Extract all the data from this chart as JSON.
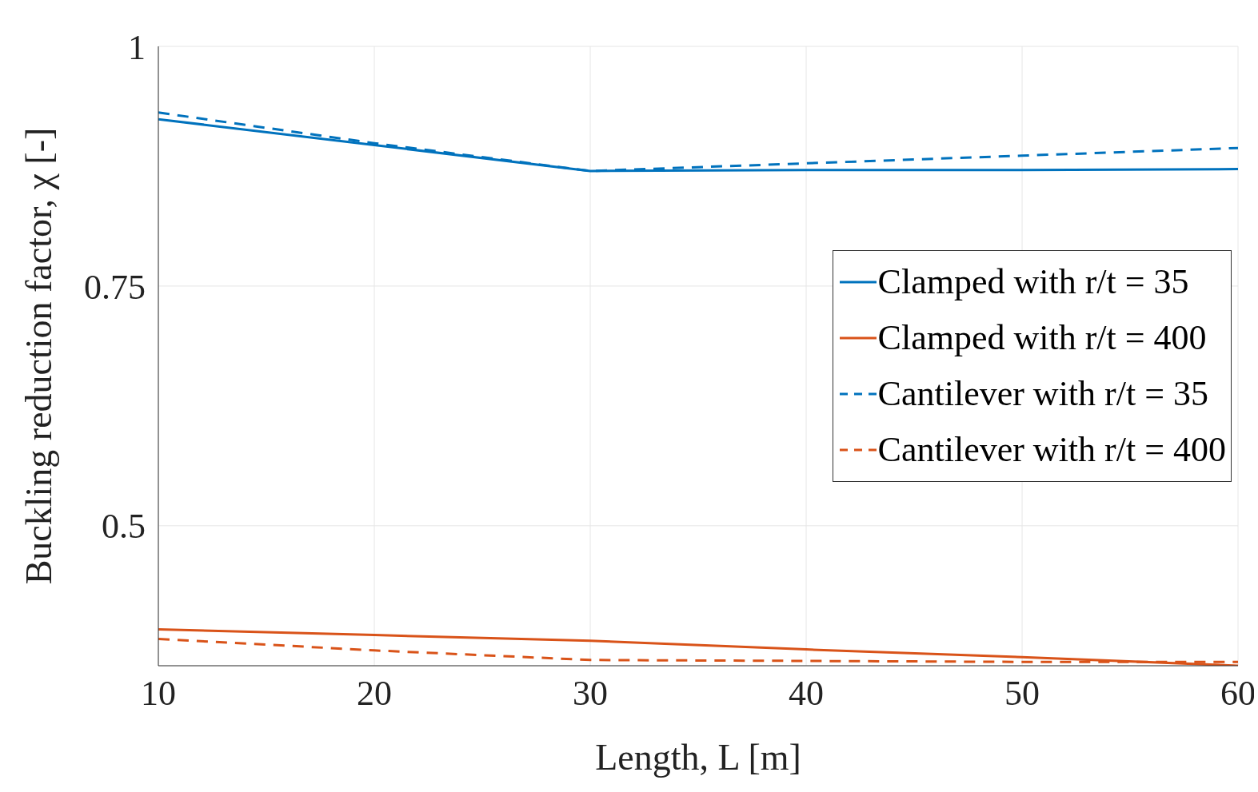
{
  "chart_data": {
    "type": "line",
    "xlabel": "Length, L [m]",
    "ylabel": "Buckling reduction factor, χ [-]",
    "x": [
      10,
      20,
      30,
      40,
      50,
      60
    ],
    "xlim": [
      10,
      60
    ],
    "xticks": [
      10,
      20,
      30,
      40,
      50,
      60
    ],
    "ylim": [
      0.354,
      1
    ],
    "yticks": [
      0.5,
      0.75,
      1
    ],
    "grid": true,
    "legend": "right",
    "marker": "none",
    "series": [
      {
        "name": "Clamped with r/t = 35",
        "color": "#0072bd",
        "line_style": "solid",
        "values": [
          0.924,
          0.897,
          0.87,
          0.871,
          0.871,
          0.872
        ]
      },
      {
        "name": "Clamped with r/t = 400",
        "color": "#d95319",
        "line_style": "solid",
        "values": [
          0.392,
          0.386,
          0.38,
          0.371,
          0.363,
          0.354
        ]
      },
      {
        "name": "Cantilever with r/t = 35",
        "color": "#0072bd",
        "line_style": "dashed",
        "values": [
          0.931,
          0.899,
          0.87,
          0.878,
          0.886,
          0.894
        ]
      },
      {
        "name": "Cantilever with r/t = 400",
        "color": "#d95319",
        "line_style": "dashed",
        "values": [
          0.382,
          0.37,
          0.36,
          0.359,
          0.358,
          0.358
        ]
      }
    ]
  }
}
